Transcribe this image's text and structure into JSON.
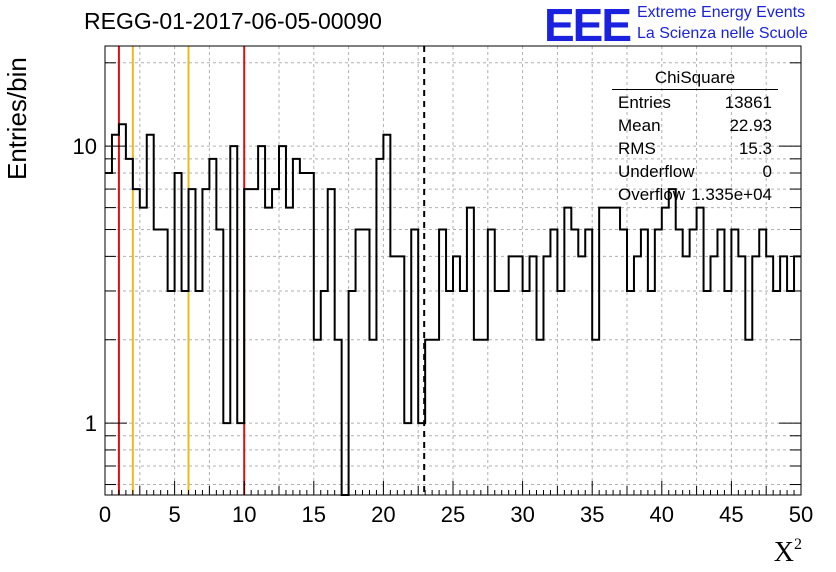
{
  "chart_data": {
    "type": "histogram",
    "title": "REGG-01-2017-06-05-00090",
    "xlabel": "X",
    "xlabel_sup": "2",
    "ylabel": "Entries/bin",
    "yscale": "log",
    "xlim": [
      0,
      50
    ],
    "ylim": [
      0.55,
      23
    ],
    "grid": true,
    "x_ticks": [
      0,
      5,
      10,
      15,
      20,
      25,
      30,
      35,
      40,
      45,
      50
    ],
    "x_tick_labels": [
      "0",
      "5",
      "10",
      "15",
      "20",
      "25",
      "30",
      "35",
      "40",
      "45",
      "50"
    ],
    "y_ticks": [
      1,
      10
    ],
    "y_tick_labels": [
      "1",
      "10"
    ],
    "bin_width": 0.5,
    "bin_low_edges": [
      0,
      0.5,
      1,
      1.5,
      2,
      2.5,
      3,
      3.5,
      4,
      4.5,
      5,
      5.5,
      6,
      6.5,
      7,
      7.5,
      8,
      8.5,
      9,
      9.5,
      10,
      10.5,
      11,
      11.5,
      12,
      12.5,
      13,
      13.5,
      14,
      14.5,
      15,
      15.5,
      16,
      16.5,
      17,
      17.5,
      18,
      18.5,
      19,
      19.5,
      20,
      20.5,
      21,
      21.5,
      22,
      22.5,
      23,
      23.5,
      24,
      24.5,
      25,
      25.5,
      26,
      26.5,
      27,
      27.5,
      28,
      28.5,
      29,
      29.5,
      30,
      30.5,
      31,
      31.5,
      32,
      32.5,
      33,
      33.5,
      34,
      34.5,
      35,
      35.5,
      36,
      36.5,
      37,
      37.5,
      38,
      38.5,
      39,
      39.5,
      40,
      40.5,
      41,
      41.5,
      42,
      42.5,
      43,
      43.5,
      44,
      44.5,
      45,
      45.5,
      46,
      46.5,
      47,
      47.5,
      48,
      48.5,
      49,
      49.5
    ],
    "bin_counts": [
      8,
      11,
      12,
      9,
      7,
      6,
      11,
      5,
      5,
      3,
      8,
      3,
      7,
      3,
      7,
      9,
      5,
      1,
      10,
      1,
      7,
      7,
      10,
      6,
      7,
      10,
      6,
      9,
      8,
      8,
      2,
      3,
      7,
      2,
      0,
      3,
      5,
      5,
      2,
      9,
      11,
      4,
      4,
      1,
      5,
      1,
      2,
      2,
      5,
      3,
      4,
      3,
      6,
      2,
      2,
      5,
      3,
      3,
      4,
      4,
      3,
      4,
      2,
      4,
      5,
      3,
      6,
      5,
      4,
      5,
      2,
      6,
      6,
      6,
      5,
      3,
      4,
      5,
      3,
      5,
      6,
      7,
      5,
      4,
      5,
      6,
      3,
      4,
      5,
      3,
      5,
      4,
      2,
      4,
      5,
      4,
      3,
      4,
      3,
      4
    ],
    "histogram_color": "#000000",
    "vertical_lines": [
      {
        "x": 1,
        "color": "#e01010",
        "style": "solid"
      },
      {
        "x": 2,
        "color": "#f0b820",
        "style": "solid"
      },
      {
        "x": 6,
        "color": "#f0b820",
        "style": "solid"
      },
      {
        "x": 10,
        "color": "#e01010",
        "style": "solid"
      },
      {
        "x": 22.93,
        "color": "#000000",
        "style": "dashed"
      }
    ],
    "stats_box": {
      "name": "ChiSquare",
      "rows": [
        {
          "label": "Entries",
          "value": "13861"
        },
        {
          "label": "Mean",
          "value": "22.93"
        },
        {
          "label": "RMS",
          "value": "15.3"
        },
        {
          "label": "Underflow",
          "value": "0"
        },
        {
          "label": "Overflow",
          "value": "1.335e+04"
        }
      ],
      "placement": "top-right"
    }
  },
  "logo": {
    "text": "EEE",
    "line1": "Extreme Energy Events",
    "line2": "La Scienza nelle Scuole",
    "color": "#1a22e0"
  }
}
